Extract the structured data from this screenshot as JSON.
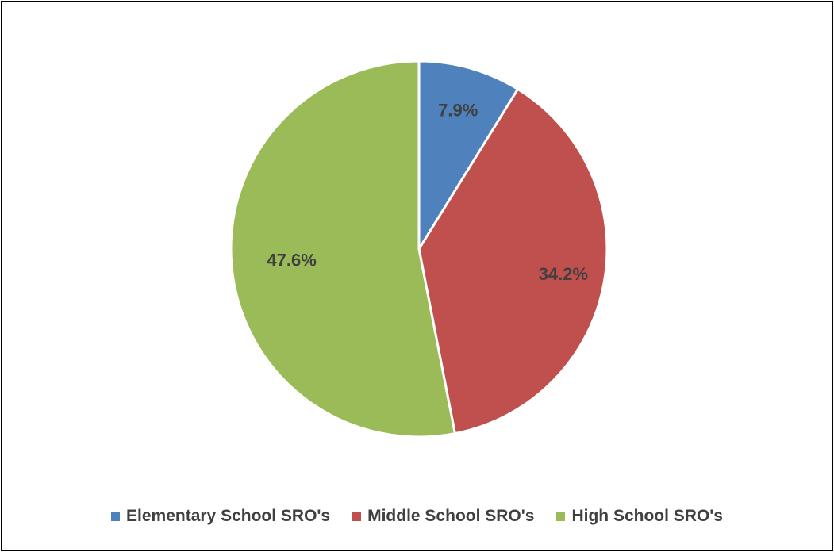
{
  "chart_data": {
    "type": "pie",
    "categories": [
      "Elementary School SRO's",
      "Middle School SRO's",
      "High School SRO's"
    ],
    "values": [
      7.9,
      34.2,
      47.6
    ],
    "labels": [
      "7.9%",
      "34.2%",
      "47.6%"
    ],
    "colors": [
      "#4f81bd",
      "#c0504d",
      "#9bbb59"
    ],
    "legend_position": "bottom",
    "start_angle": "12 o'clock, clockwise"
  }
}
